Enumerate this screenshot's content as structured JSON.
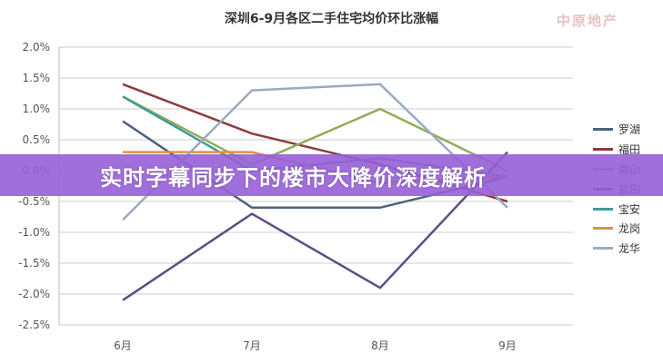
{
  "chart_data": {
    "type": "line",
    "title": "深圳6-9月各区二手住宅均价环比涨幅",
    "categories": [
      "6月",
      "7月",
      "8月",
      "9月"
    ],
    "ylim": [
      -2.5,
      2.0
    ],
    "yticks": [
      "2.0%",
      "1.5%",
      "1.0%",
      "0.5%",
      "0.0%",
      "-0.5%",
      "-1.0%",
      "-1.5%",
      "-2.0%",
      "-2.5%"
    ],
    "ytick_values": [
      2.0,
      1.5,
      1.0,
      0.5,
      0.0,
      -0.5,
      -1.0,
      -1.5,
      -2.0,
      -2.5
    ],
    "grid": true,
    "legend": "right",
    "series": [
      {
        "name": "罗湖",
        "color": "#4a6384",
        "values": [
          0.8,
          -0.6,
          -0.6,
          -0.1
        ]
      },
      {
        "name": "福田",
        "color": "#8c3c3c",
        "values": [
          1.4,
          0.6,
          0.1,
          -0.5
        ]
      },
      {
        "name": "南山",
        "color": "#93ab58",
        "values": [
          1.2,
          0.1,
          1.0,
          0.0
        ]
      },
      {
        "name": "盐田",
        "color": "#5d4d86",
        "values": [
          -2.1,
          -0.7,
          -1.9,
          0.3
        ]
      },
      {
        "name": "宝安",
        "color": "#3f9a9a",
        "values": [
          1.2,
          0.0,
          0.2,
          -0.1
        ]
      },
      {
        "name": "龙岗",
        "color": "#e0903c",
        "values": [
          0.3,
          0.3,
          -0.2,
          -0.1
        ]
      },
      {
        "name": "龙华",
        "color": "#9aaac0",
        "values": [
          -0.8,
          1.3,
          1.4,
          -0.6
        ]
      }
    ]
  },
  "watermark": "中原地产",
  "banner": {
    "text": "实时字幕同步下的楼市大降价深度解析",
    "color": "#965fd7"
  }
}
